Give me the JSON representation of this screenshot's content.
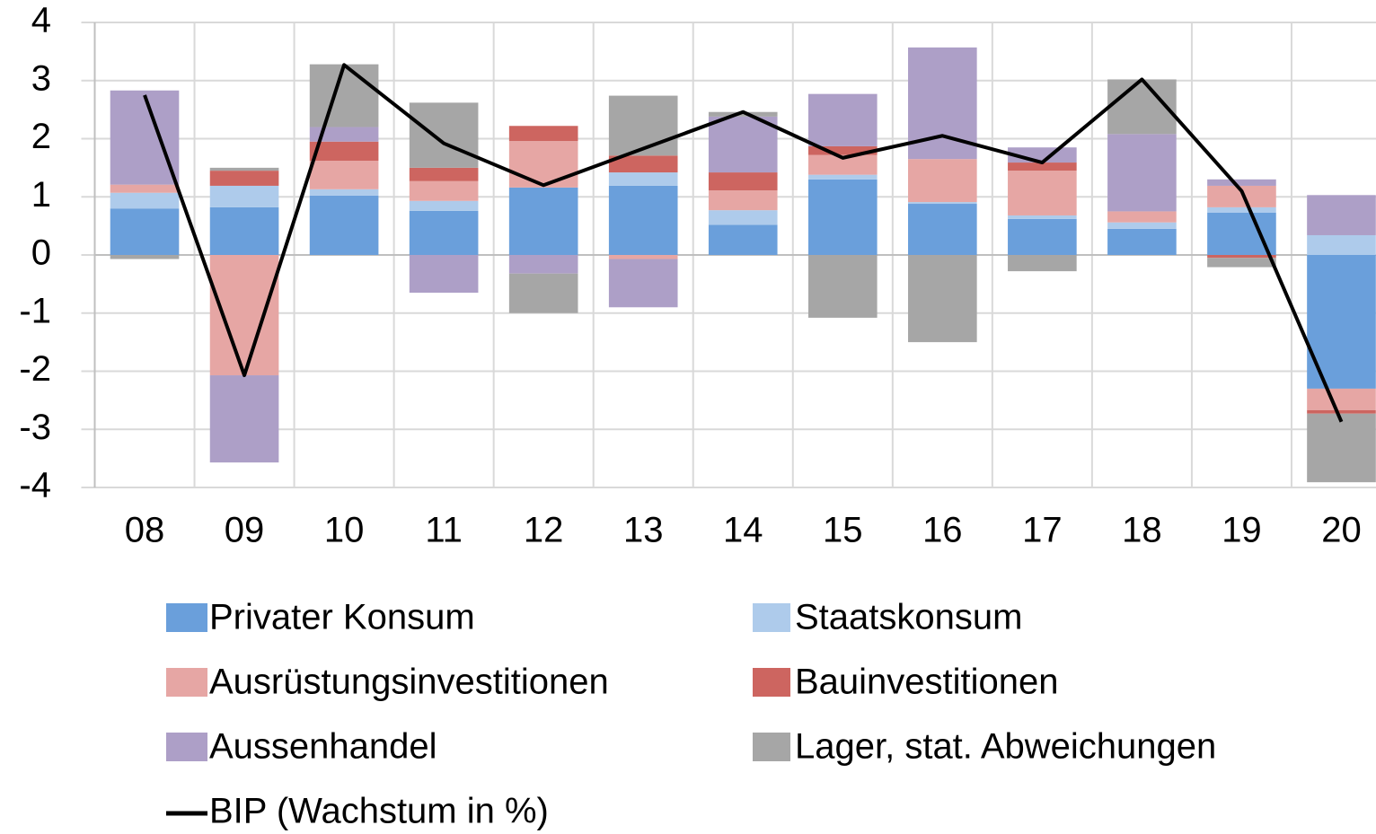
{
  "chart_data": {
    "type": "bar",
    "stacked": true,
    "categories": [
      "08",
      "09",
      "10",
      "11",
      "12",
      "13",
      "14",
      "15",
      "16",
      "17",
      "18",
      "19",
      "20"
    ],
    "ylim": [
      -4,
      4
    ],
    "yticks": [
      4,
      3,
      2,
      1,
      0,
      -1,
      -2,
      -3,
      -4
    ],
    "grid": true,
    "legend": "bottom",
    "series": [
      {
        "name": "Privater Konsum",
        "color": "#6a9fdb",
        "values": [
          0.8,
          0.82,
          1.02,
          0.76,
          1.16,
          1.19,
          0.52,
          1.3,
          0.88,
          0.62,
          0.45,
          0.73,
          -2.3
        ]
      },
      {
        "name": "Staatskonsum",
        "color": "#aecbeb",
        "values": [
          0.27,
          0.37,
          0.11,
          0.17,
          0,
          0.23,
          0.25,
          0.08,
          0.03,
          0.06,
          0.11,
          0.09,
          0.34
        ]
      },
      {
        "name": "Ausrüstungsinvestitionen",
        "color": "#e6a6a4",
        "values": [
          0.14,
          -2.07,
          0.49,
          0.34,
          0.8,
          -0.07,
          0.34,
          0.34,
          0.74,
          0.77,
          0.19,
          0.37,
          -0.37
        ]
      },
      {
        "name": "Bauinvestitionen",
        "color": "#cd6560",
        "values": [
          0,
          0.26,
          0.33,
          0.23,
          0.26,
          0.29,
          0.31,
          0.15,
          0,
          0.14,
          0,
          -0.05,
          -0.06
        ]
      },
      {
        "name": "Aussenhandel",
        "color": "#ad9fc7",
        "values": [
          1.62,
          -1.5,
          0.25,
          -0.65,
          -0.32,
          -0.83,
          0.96,
          0.9,
          1.92,
          0.26,
          1.33,
          0.11,
          0.69
        ]
      },
      {
        "name": "Lager, stat. Abweichungen",
        "color": "#a6a6a6",
        "values": [
          -0.07,
          0.05,
          1.08,
          1.12,
          -0.68,
          1.03,
          0.08,
          -1.08,
          -1.5,
          -0.28,
          0.94,
          -0.16,
          -1.18
        ]
      },
      {
        "name": "BIP (Wachstum in %)",
        "type": "line",
        "color": "#000000",
        "values": [
          2.75,
          -2.07,
          3.27,
          1.92,
          1.2,
          1.83,
          2.46,
          1.67,
          2.05,
          1.59,
          3.02,
          1.1,
          -2.87
        ]
      }
    ]
  }
}
